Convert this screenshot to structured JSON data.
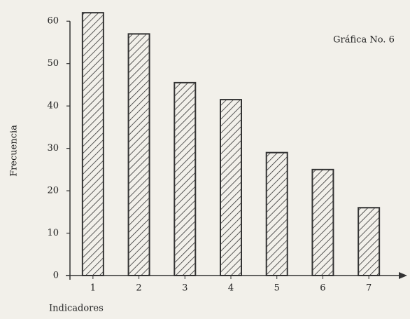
{
  "chart_data": {
    "type": "bar",
    "annotation": "Gráfica No. 6",
    "y_label": "Frecuencia",
    "x_label": "Indicadores",
    "categories": [
      "1",
      "2",
      "3",
      "4",
      "5",
      "6",
      "7"
    ],
    "values": [
      62,
      57,
      45.5,
      41.5,
      29,
      25,
      16
    ],
    "color": "#333333",
    "ylim": [
      0,
      65
    ],
    "yticks": [
      0,
      10,
      20,
      30,
      40,
      50,
      60
    ],
    "grid": false
  }
}
